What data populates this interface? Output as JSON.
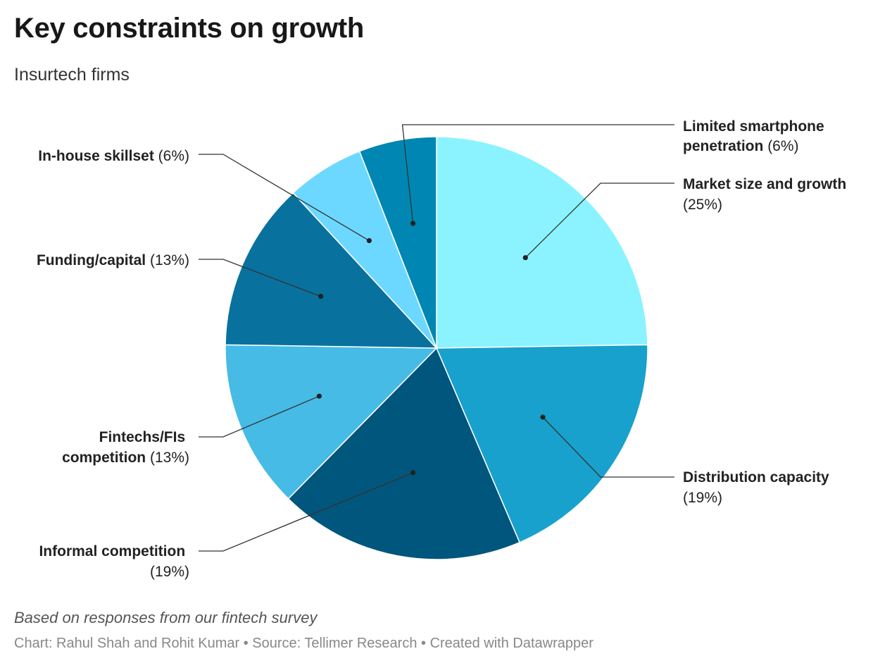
{
  "chart_data": {
    "type": "pie",
    "title": "Key constraints on growth",
    "subtitle": "Insurtech firms",
    "slices": [
      {
        "label": "Market size and growth",
        "value": 25,
        "value_label": "(25%)",
        "color": "#8af3ff"
      },
      {
        "label": "Distribution capacity",
        "value": 19,
        "value_label": "(19%)",
        "color": "#18a1cd"
      },
      {
        "label": "Informal competition",
        "value": 19,
        "value_label": "(19%)",
        "color": "#00567d"
      },
      {
        "label": "Fintechs/FIs competition",
        "value": 13,
        "value_label": "(13%)",
        "color": "#46bbe5"
      },
      {
        "label": "Funding/capital",
        "value": 13,
        "value_label": "(13%)",
        "color": "#09719e"
      },
      {
        "label": "In-house skillset",
        "value": 6,
        "value_label": "(6%)",
        "color": "#6dd8ff"
      },
      {
        "label": "Limited smartphone penetration",
        "value": 6,
        "value_label": "(6%)",
        "color": "#0086b3"
      }
    ],
    "notes": "Based on responses from our fintech survey",
    "footer": "Chart: Rahul Shah and Rohit Kumar • Source: Tellimer Research • Created with Datawrapper"
  }
}
